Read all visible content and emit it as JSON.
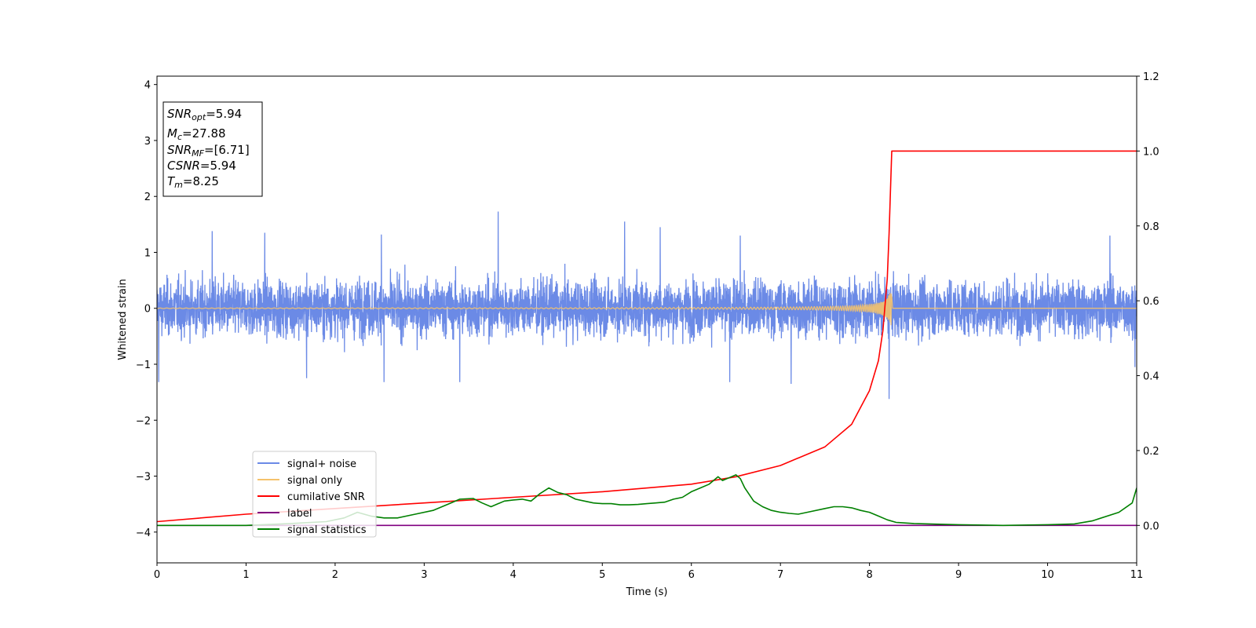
{
  "chart_data": {
    "type": "line",
    "xlabel": "Time (s)",
    "ylabel_left": "Whitened strain",
    "ylabel_right": "",
    "xlim": [
      0,
      11
    ],
    "ylim_left": [
      -4.55,
      4.15
    ],
    "ylim_right": [
      -0.1,
      1.2
    ],
    "x_ticks": [
      "0",
      "1",
      "2",
      "3",
      "4",
      "5",
      "6",
      "7",
      "8",
      "9",
      "10",
      "11"
    ],
    "y_ticks_left": [
      "4",
      "3",
      "2",
      "1",
      "0",
      "−1",
      "−2",
      "−3",
      "−4"
    ],
    "y_ticks_right": [
      "1.2",
      "1.0",
      "0.8",
      "0.6",
      "0.4",
      "0.2",
      "0.0"
    ],
    "grid": false,
    "legend_position": "lower-left",
    "annotation": [
      {
        "main": "SNR",
        "sub": "opt",
        "value": "=5.94"
      },
      {
        "main": "M",
        "sub": "c",
        "value": "=27.88"
      },
      {
        "main": "SNR",
        "sub": "MF",
        "value": "=[6.71]"
      },
      {
        "main": "CSNR",
        "sub": "",
        "value": "=5.94"
      },
      {
        "main": "T",
        "sub": "m",
        "value": "=8.25"
      }
    ],
    "series": [
      {
        "name": "signal+ noise",
        "axis": "left",
        "color": "#6b8ae6",
        "kind": "noise",
        "typical_amplitude": 0.35,
        "peak_values": [
          {
            "x": 0.02,
            "y": -1.32
          },
          {
            "x": 0.62,
            "y": 1.38
          },
          {
            "x": 1.21,
            "y": 1.35
          },
          {
            "x": 1.68,
            "y": -1.25
          },
          {
            "x": 2.52,
            "y": 1.32
          },
          {
            "x": 2.55,
            "y": -1.32
          },
          {
            "x": 3.4,
            "y": -1.32
          },
          {
            "x": 3.83,
            "y": 1.73
          },
          {
            "x": 5.25,
            "y": 1.55
          },
          {
            "x": 5.65,
            "y": 1.45
          },
          {
            "x": 6.55,
            "y": 1.3
          },
          {
            "x": 6.43,
            "y": -1.32
          },
          {
            "x": 7.12,
            "y": -1.35
          },
          {
            "x": 8.22,
            "y": -1.62
          },
          {
            "x": 10.7,
            "y": 1.3
          },
          {
            "x": 10.98,
            "y": -1.05
          }
        ]
      },
      {
        "name": "signal only",
        "axis": "left",
        "color": "#f5c26b",
        "kind": "chirp",
        "merger_time": 8.25,
        "peak_amplitude": 0.5
      },
      {
        "name": "cumilative SNR",
        "axis": "right",
        "color": "#ff0000",
        "x": [
          0,
          1,
          2,
          3,
          4,
          5,
          6,
          6.5,
          7,
          7.5,
          7.8,
          8.0,
          8.1,
          8.15,
          8.2,
          8.22,
          8.24,
          8.25,
          8.26,
          11
        ],
        "values": [
          0.01,
          0.03,
          0.045,
          0.06,
          0.075,
          0.09,
          0.11,
          0.13,
          0.16,
          0.21,
          0.27,
          0.36,
          0.44,
          0.52,
          0.66,
          0.78,
          0.93,
          1.0,
          1.0,
          1.0
        ]
      },
      {
        "name": "label",
        "axis": "right",
        "color": "#800080",
        "x": [
          0,
          11
        ],
        "values": [
          0,
          0
        ]
      },
      {
        "name": "signal statistics",
        "axis": "right",
        "color": "#008000",
        "x": [
          0,
          0.5,
          1,
          1.5,
          1.9,
          2.1,
          2.25,
          2.4,
          2.55,
          2.7,
          2.9,
          3.1,
          3.3,
          3.4,
          3.55,
          3.65,
          3.75,
          3.9,
          4.0,
          4.1,
          4.2,
          4.3,
          4.4,
          4.5,
          4.6,
          4.7,
          4.8,
          4.9,
          5.0,
          5.1,
          5.2,
          5.3,
          5.4,
          5.5,
          5.6,
          5.7,
          5.8,
          5.9,
          6.0,
          6.1,
          6.2,
          6.3,
          6.35,
          6.45,
          6.5,
          6.55,
          6.6,
          6.7,
          6.8,
          6.9,
          7.0,
          7.1,
          7.2,
          7.3,
          7.5,
          7.6,
          7.7,
          7.8,
          7.9,
          8.0,
          8.1,
          8.2,
          8.3,
          8.5,
          9.0,
          9.5,
          10.0,
          10.3,
          10.5,
          10.8,
          10.95,
          11
        ],
        "values": [
          0.0,
          0.0,
          0.0,
          0.005,
          0.01,
          0.02,
          0.035,
          0.025,
          0.02,
          0.02,
          0.03,
          0.04,
          0.06,
          0.07,
          0.072,
          0.06,
          0.05,
          0.065,
          0.068,
          0.07,
          0.065,
          0.085,
          0.1,
          0.088,
          0.082,
          0.07,
          0.065,
          0.06,
          0.058,
          0.058,
          0.055,
          0.055,
          0.056,
          0.058,
          0.06,
          0.062,
          0.07,
          0.075,
          0.09,
          0.1,
          0.11,
          0.13,
          0.12,
          0.13,
          0.135,
          0.125,
          0.1,
          0.065,
          0.05,
          0.04,
          0.035,
          0.032,
          0.03,
          0.035,
          0.045,
          0.05,
          0.05,
          0.047,
          0.04,
          0.035,
          0.025,
          0.015,
          0.008,
          0.005,
          0.002,
          0.0,
          0.002,
          0.004,
          0.012,
          0.035,
          0.06,
          0.1
        ]
      }
    ]
  }
}
